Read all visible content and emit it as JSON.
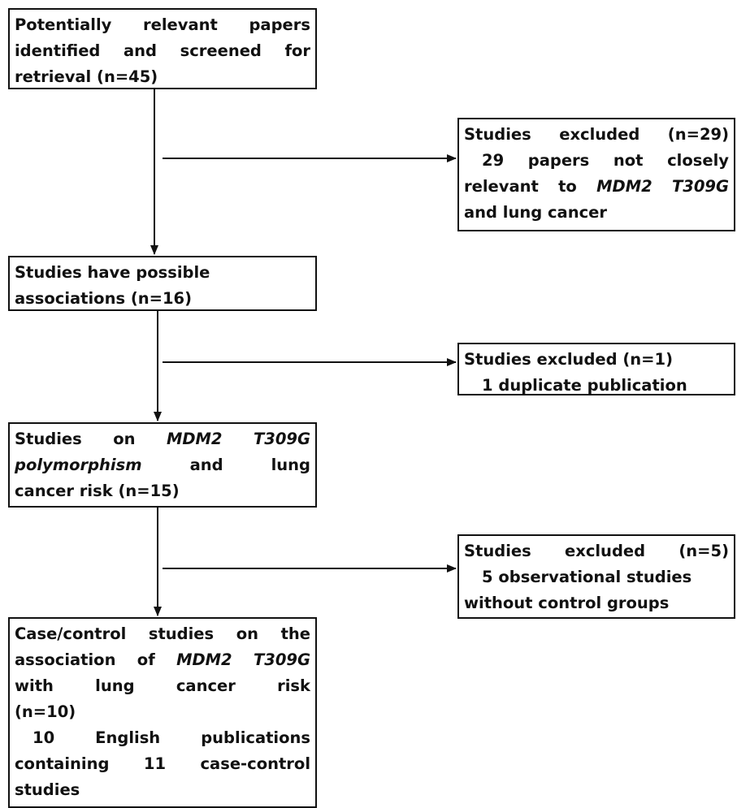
{
  "nodes": [
    {
      "lines": [
        [
          "Potentially relevant papers"
        ],
        [
          "identified and screened for"
        ],
        [
          "retrieval (n=45)"
        ]
      ]
    },
    {
      "lines": [
        [
          "Studies excluded (n=29)"
        ],
        [
          "29 papers not closely"
        ],
        [
          "relevant to ",
          "MDM2 T309G"
        ],
        [
          "and lung cancer"
        ]
      ]
    },
    {
      "lines": [
        [
          "Studies have possible"
        ],
        [
          "associations (n=16)"
        ]
      ]
    },
    {
      "lines": [
        [
          "Studies excluded (n=1)"
        ],
        [
          "1 duplicate publication"
        ]
      ]
    },
    {
      "lines": [
        [
          "Studies on ",
          "MDM2 T309G"
        ],
        [
          "polymorphism",
          " and lung"
        ],
        [
          "cancer risk (n=15)"
        ]
      ]
    },
    {
      "lines": [
        [
          "Studies excluded (n=5)"
        ],
        [
          "5 observational studies"
        ],
        [
          "without control groups"
        ]
      ]
    },
    {
      "lines": [
        [
          "Case/control studies on the"
        ],
        [
          "association of ",
          "MDM2 T309G"
        ],
        [
          "with lung cancer risk"
        ],
        [
          "(n=10)"
        ],
        [
          "10 English publications"
        ],
        [
          "containing 11 case-control"
        ],
        [
          "studies"
        ]
      ]
    }
  ]
}
